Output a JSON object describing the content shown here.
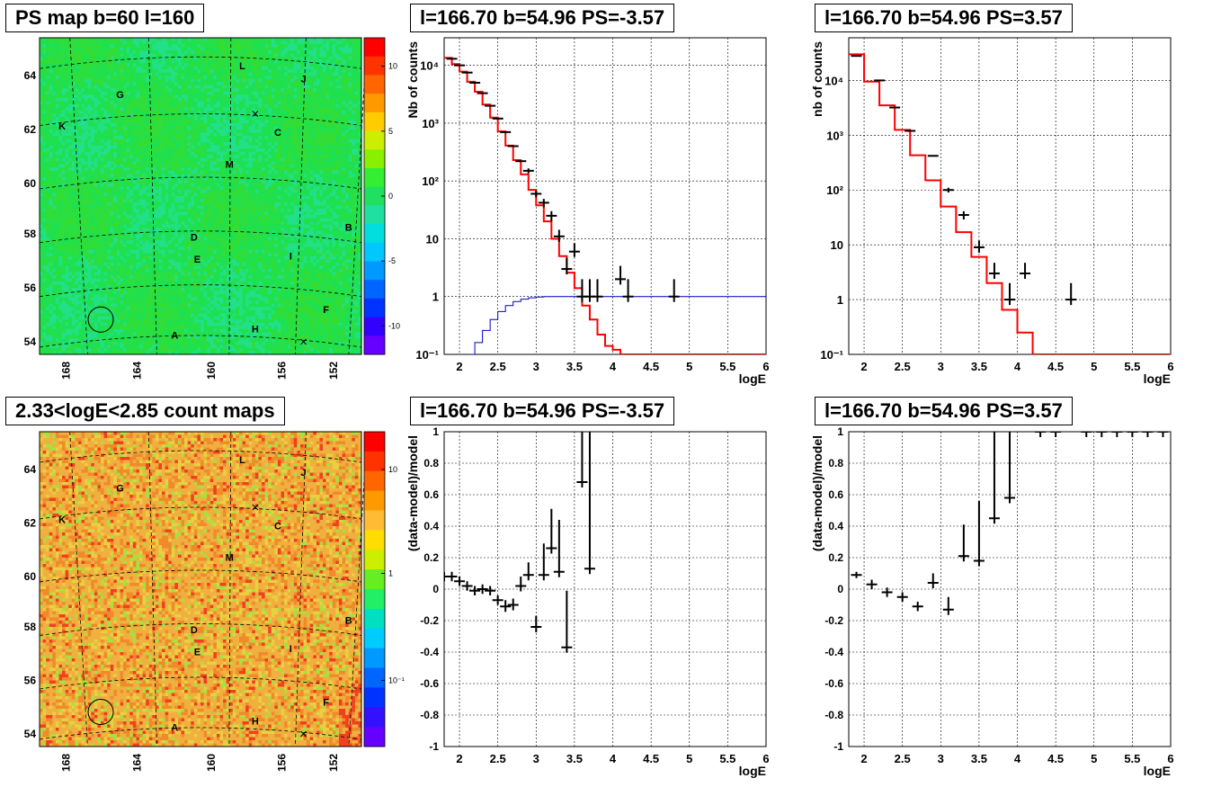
{
  "panels": [
    {
      "title": "PS map b=60 l=160"
    },
    {
      "title": "l=166.70 b=54.96 PS=-3.57"
    },
    {
      "title": "l=166.70 b=54.96 PS=3.57"
    },
    {
      "title": "2.33<logE<2.85 count maps"
    },
    {
      "title": "l=166.70 b=54.96 PS=-3.57"
    },
    {
      "title": "l=166.70 b=54.96 PS=3.57"
    }
  ],
  "colors": {
    "model_line": "#ff0000",
    "bg_line": "#0000cc",
    "data": "#000000"
  },
  "chart_data": [
    {
      "type": "heatmap",
      "title": "PS map b=60 l=160",
      "xticks": [
        "168",
        "164",
        "160",
        "156",
        "152"
      ],
      "yticks": [
        "54",
        "56",
        "58",
        "60",
        "62",
        "64"
      ],
      "colorbar_ticks": [
        "10",
        "5",
        "0",
        "-5",
        "-10"
      ],
      "colorbar_range": [
        -13,
        13
      ],
      "dominant_value": 0,
      "sources": [
        "A",
        "B",
        "C",
        "D",
        "E",
        "F",
        "G",
        "H",
        "I",
        "J",
        "K",
        "L",
        "M"
      ],
      "circle_source": {
        "l": 166.7,
        "b": 54.96
      }
    },
    {
      "type": "scatter",
      "title": "l=166.70 b=54.96 PS=-3.57",
      "xlabel": "logE",
      "ylabel": "Nb of counts",
      "log_y": true,
      "xlim": [
        1.8,
        6
      ],
      "ylim": [
        0.1,
        30000
      ],
      "xticks": [
        "2",
        "2.5",
        "3",
        "3.5",
        "4",
        "4.5",
        "5",
        "5.5",
        "6"
      ],
      "yticks": [
        "10⁻¹",
        "1",
        "10",
        "10²",
        "10³",
        "10⁴"
      ],
      "grid": true,
      "data_points": [
        {
          "x": 1.9,
          "y": 13000,
          "err": 0
        },
        {
          "x": 2.0,
          "y": 10000,
          "err": 0
        },
        {
          "x": 2.1,
          "y": 7500,
          "err": 0
        },
        {
          "x": 2.2,
          "y": 5000,
          "err": 0
        },
        {
          "x": 2.3,
          "y": 3300,
          "err": 0
        },
        {
          "x": 2.4,
          "y": 2000,
          "err": 0
        },
        {
          "x": 2.5,
          "y": 1200,
          "err": 0
        },
        {
          "x": 2.6,
          "y": 700,
          "err": 0
        },
        {
          "x": 2.7,
          "y": 400,
          "err": 0
        },
        {
          "x": 2.8,
          "y": 220,
          "err": 0
        },
        {
          "x": 2.9,
          "y": 150,
          "err": 15
        },
        {
          "x": 3.0,
          "y": 60,
          "err": 8
        },
        {
          "x": 3.1,
          "y": 42,
          "err": 7
        },
        {
          "x": 3.2,
          "y": 25,
          "err": 5
        },
        {
          "x": 3.3,
          "y": 11,
          "err": 3.3
        },
        {
          "x": 3.4,
          "y": 3,
          "err": 1.7
        },
        {
          "x": 3.5,
          "y": 6,
          "err": 2.4
        },
        {
          "x": 3.6,
          "y": 1,
          "err": 1
        },
        {
          "x": 3.7,
          "y": 1,
          "err": 1
        },
        {
          "x": 3.8,
          "y": 1,
          "err": 1
        },
        {
          "x": 4.1,
          "y": 2,
          "err": 1.4
        },
        {
          "x": 4.2,
          "y": 1,
          "err": 1
        },
        {
          "x": 4.8,
          "y": 1,
          "err": 1
        }
      ],
      "model_step": {
        "x": [
          1.8,
          1.9,
          2.0,
          2.1,
          2.2,
          2.3,
          2.4,
          2.5,
          2.6,
          2.7,
          2.8,
          2.9,
          3.0,
          3.1,
          3.2,
          3.3,
          3.4,
          3.5,
          3.6,
          3.7,
          3.8,
          3.9,
          4.0,
          4.1,
          4.2
        ],
        "y": [
          13500,
          10500,
          7800,
          5200,
          3500,
          2100,
          1250,
          720,
          410,
          230,
          130,
          70,
          38,
          20,
          10,
          5,
          2.6,
          1.4,
          0.7,
          0.4,
          0.22,
          0.14,
          0.12,
          0.1,
          0.1
        ]
      },
      "background_step": {
        "x": [
          2.1,
          2.2,
          2.3,
          2.4,
          2.5,
          2.6,
          2.7,
          2.8,
          2.9,
          3.0,
          3.1,
          3.2,
          6.0
        ],
        "y": [
          0.1,
          0.16,
          0.26,
          0.4,
          0.55,
          0.7,
          0.82,
          0.9,
          0.95,
          0.98,
          1.0,
          1.0,
          1.0
        ]
      }
    },
    {
      "type": "scatter",
      "title": "l=166.70 b=54.96 PS=3.57",
      "xlabel": "logE",
      "ylabel": "nb of counts",
      "log_y": true,
      "xlim": [
        1.8,
        6
      ],
      "ylim": [
        0.1,
        60000
      ],
      "xticks": [
        "2",
        "2.5",
        "3",
        "3.5",
        "4",
        "4.5",
        "5",
        "5.5",
        "6"
      ],
      "yticks": [
        "10⁻¹",
        "1",
        "10",
        "10²",
        "10³",
        "10⁴"
      ],
      "grid": true,
      "data_points": [
        {
          "x": 1.9,
          "y": 28000,
          "err": 0
        },
        {
          "x": 2.2,
          "y": 10000,
          "err": 0
        },
        {
          "x": 2.4,
          "y": 3200,
          "err": 0
        },
        {
          "x": 2.6,
          "y": 1200,
          "err": 0
        },
        {
          "x": 2.9,
          "y": 420,
          "err": 0
        },
        {
          "x": 3.1,
          "y": 100,
          "err": 10
        },
        {
          "x": 3.3,
          "y": 35,
          "err": 6
        },
        {
          "x": 3.5,
          "y": 9,
          "err": 3
        },
        {
          "x": 3.7,
          "y": 3,
          "err": 1.7
        },
        {
          "x": 3.9,
          "y": 1,
          "err": 1
        },
        {
          "x": 4.1,
          "y": 3,
          "err": 1.7
        },
        {
          "x": 4.7,
          "y": 1,
          "err": 1
        }
      ],
      "model_step": {
        "x": [
          1.8,
          2.0,
          2.2,
          2.4,
          2.6,
          2.8,
          3.0,
          3.2,
          3.4,
          3.6,
          3.8,
          4.0,
          4.2
        ],
        "y": [
          30000,
          9500,
          3500,
          1250,
          430,
          150,
          50,
          17,
          6,
          2,
          0.65,
          0.25,
          0.1
        ]
      }
    },
    {
      "type": "heatmap",
      "title": "2.33<logE<2.85 count maps",
      "xticks": [
        "168",
        "164",
        "160",
        "156",
        "152"
      ],
      "yticks": [
        "54",
        "56",
        "58",
        "60",
        "62",
        "64"
      ],
      "colorbar_ticks": [
        "10",
        "1",
        "10⁻¹"
      ],
      "colorbar_log": true,
      "sources": [
        "A",
        "B",
        "C",
        "D",
        "E",
        "F",
        "G",
        "H",
        "I",
        "J",
        "K",
        "L",
        "M"
      ],
      "circle_source": {
        "l": 166.7,
        "b": 54.96
      }
    },
    {
      "type": "scatter",
      "title": "l=166.70 b=54.96 PS=-3.57",
      "xlabel": "logE",
      "ylabel": "(data-model)/model",
      "xlim": [
        1.8,
        6
      ],
      "ylim": [
        -1,
        1
      ],
      "xticks": [
        "2",
        "2.5",
        "3",
        "3.5",
        "4",
        "4.5",
        "5",
        "5.5",
        "6"
      ],
      "yticks": [
        "-1",
        "-0.8",
        "-0.6",
        "-0.4",
        "-0.2",
        "0",
        "0.2",
        "0.4",
        "0.6",
        "0.8",
        "1"
      ],
      "grid": true,
      "data_points": [
        {
          "x": 1.8,
          "y": 0.08,
          "err": 0.03
        },
        {
          "x": 1.9,
          "y": 0.08,
          "err": 0.03
        },
        {
          "x": 2.0,
          "y": 0.05,
          "err": 0.03
        },
        {
          "x": 2.1,
          "y": 0.02,
          "err": 0.03
        },
        {
          "x": 2.2,
          "y": -0.01,
          "err": 0.03
        },
        {
          "x": 2.3,
          "y": 0.0,
          "err": 0.03
        },
        {
          "x": 2.4,
          "y": -0.01,
          "err": 0.03
        },
        {
          "x": 2.5,
          "y": -0.07,
          "err": 0.03
        },
        {
          "x": 2.6,
          "y": -0.11,
          "err": 0.04
        },
        {
          "x": 2.7,
          "y": -0.1,
          "err": 0.04
        },
        {
          "x": 2.8,
          "y": 0.02,
          "err": 0.06
        },
        {
          "x": 2.9,
          "y": 0.09,
          "err": 0.08
        },
        {
          "x": 3.0,
          "y": -0.24,
          "err": 0.07
        },
        {
          "x": 3.1,
          "y": 0.09,
          "err": 0.2
        },
        {
          "x": 3.2,
          "y": 0.26,
          "err": 0.25
        },
        {
          "x": 3.3,
          "y": 0.11,
          "err": 0.33
        },
        {
          "x": 3.4,
          "y": -0.37,
          "err": 0.36
        },
        {
          "x": 3.6,
          "y": 0.68,
          "err": 1.2
        },
        {
          "x": 3.7,
          "y": 0.13,
          "err": 1.2
        }
      ]
    },
    {
      "type": "scatter",
      "title": "l=166.70 b=54.96 PS=3.57",
      "xlabel": "logE",
      "ylabel": "(data-model)/model",
      "xlim": [
        1.8,
        6
      ],
      "ylim": [
        -1,
        1
      ],
      "xticks": [
        "2",
        "2.5",
        "3",
        "3.5",
        "4",
        "4.5",
        "5",
        "5.5",
        "6"
      ],
      "yticks": [
        "-1",
        "-0.8",
        "-0.6",
        "-0.4",
        "-0.2",
        "0",
        "0.2",
        "0.4",
        "0.6",
        "0.8",
        "1"
      ],
      "grid": true,
      "data_points": [
        {
          "x": 1.9,
          "y": 0.09,
          "err": 0.02
        },
        {
          "x": 2.1,
          "y": 0.03,
          "err": 0.03
        },
        {
          "x": 2.3,
          "y": -0.02,
          "err": 0.03
        },
        {
          "x": 2.5,
          "y": -0.05,
          "err": 0.03
        },
        {
          "x": 2.7,
          "y": -0.11,
          "err": 0.03
        },
        {
          "x": 2.9,
          "y": 0.04,
          "err": 0.06
        },
        {
          "x": 3.1,
          "y": -0.13,
          "err": 0.08
        },
        {
          "x": 3.3,
          "y": 0.21,
          "err": 0.2
        },
        {
          "x": 3.5,
          "y": 0.18,
          "err": 0.38
        },
        {
          "x": 3.7,
          "y": 0.45,
          "err": 0.82
        },
        {
          "x": 3.9,
          "y": 0.58,
          "err": 1.6
        },
        {
          "x": 4.3,
          "y": 1.5,
          "err": 3
        },
        {
          "x": 4.5,
          "y": 1.5,
          "err": 3
        },
        {
          "x": 4.9,
          "y": 1.5,
          "err": 3
        },
        {
          "x": 5.1,
          "y": 1.5,
          "err": 3
        },
        {
          "x": 5.3,
          "y": 1.5,
          "err": 3
        },
        {
          "x": 5.5,
          "y": 1.5,
          "err": 3
        },
        {
          "x": 5.7,
          "y": 1.5,
          "err": 3
        },
        {
          "x": 5.9,
          "y": 1.5,
          "err": 3
        }
      ]
    }
  ]
}
